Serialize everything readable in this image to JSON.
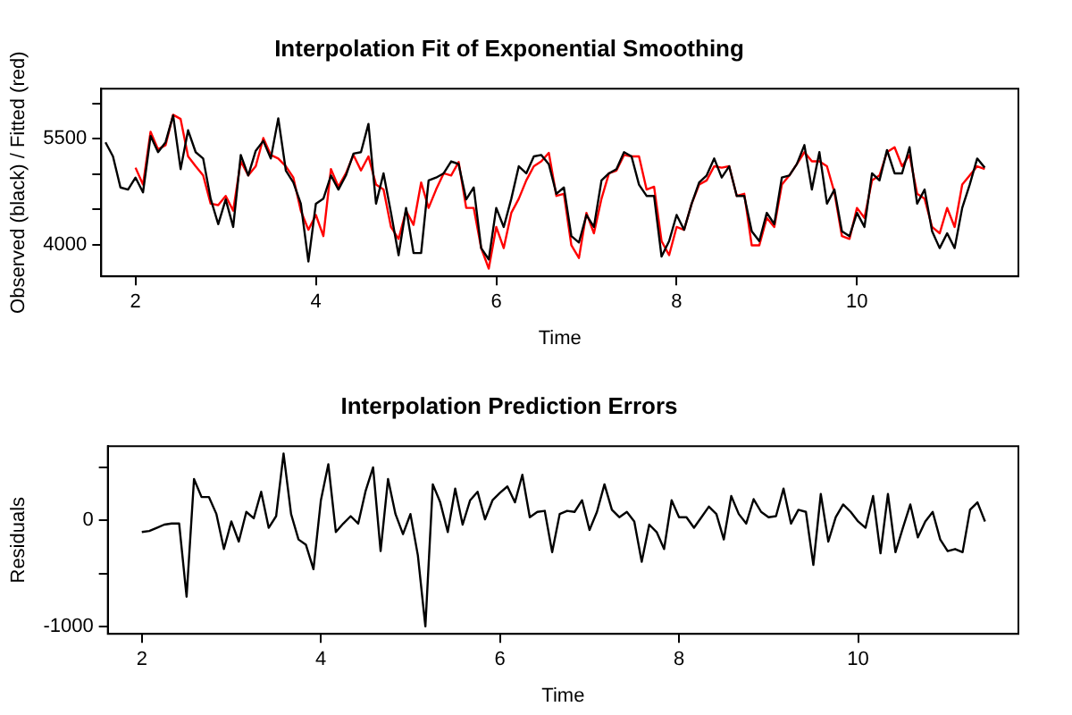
{
  "chart_data": [
    {
      "type": "line",
      "title": "Interpolation Fit of Exponential Smoothing",
      "xlabel": "Time",
      "ylabel": "Observed (black) / Fitted (red)",
      "xlim": [
        1.62,
        11.79
      ],
      "xticks": [
        2,
        4,
        6,
        8,
        10
      ],
      "ylim": [
        3550,
        6210
      ],
      "yticks": [
        4000,
        {
          "value": 4500,
          "label": null
        },
        {
          "value": 5000,
          "label": null
        },
        5500,
        {
          "value": 6000,
          "label": null
        }
      ],
      "grid": false,
      "legend": false,
      "marker": "none",
      "line_style": "solid",
      "series": [
        {
          "color": "#000000",
          "x": [
            1.667,
            1.75,
            1.833,
            1.917,
            2,
            2.083,
            2.167,
            2.25,
            2.333,
            2.417,
            2.5,
            2.583,
            2.667,
            2.75,
            2.833,
            2.917,
            3,
            3.083,
            3.167,
            3.25,
            3.333,
            3.417,
            3.5,
            3.583,
            3.667,
            3.75,
            3.833,
            3.917,
            4,
            4.083,
            4.167,
            4.25,
            4.333,
            4.417,
            4.5,
            4.583,
            4.667,
            4.75,
            4.833,
            4.917,
            5,
            5.083,
            5.167,
            5.25,
            5.333,
            5.417,
            5.5,
            5.583,
            5.667,
            5.75,
            5.833,
            5.917,
            6,
            6.083,
            6.167,
            6.25,
            6.333,
            6.417,
            6.5,
            6.583,
            6.667,
            6.75,
            6.833,
            6.917,
            7,
            7.083,
            7.167,
            7.25,
            7.333,
            7.417,
            7.5,
            7.583,
            7.667,
            7.75,
            7.833,
            7.917,
            8,
            8.083,
            8.167,
            8.25,
            8.333,
            8.417,
            8.5,
            8.583,
            8.667,
            8.75,
            8.833,
            8.917,
            9,
            9.083,
            9.167,
            9.25,
            9.333,
            9.417,
            9.5,
            9.583,
            9.667,
            9.75,
            9.833,
            9.917,
            10,
            10.083,
            10.167,
            10.25,
            10.333,
            10.417,
            10.5,
            10.583,
            10.667,
            10.75,
            10.833,
            10.917,
            11,
            11.083,
            11.167,
            11.25,
            11.333,
            11.417
          ],
          "values": [
            5450,
            5250,
            4810,
            4780,
            4950,
            4740,
            5540,
            5310,
            5450,
            5830,
            5070,
            5620,
            5310,
            5220,
            4650,
            4290,
            4640,
            4250,
            5270,
            4980,
            5330,
            5470,
            5220,
            5790,
            5050,
            4880,
            4580,
            3760,
            4580,
            4650,
            4980,
            4780,
            4980,
            5290,
            5310,
            5710,
            4580,
            5010,
            4450,
            3850,
            4520,
            3880,
            3880,
            4910,
            4950,
            5010,
            5180,
            5140,
            4640,
            4810,
            3950,
            3790,
            4520,
            4250,
            4650,
            5110,
            5010,
            5250,
            5270,
            5140,
            4720,
            4810,
            4120,
            4030,
            4420,
            4250,
            4910,
            5010,
            5070,
            5310,
            5250,
            4850,
            4690,
            4690,
            3830,
            4050,
            4420,
            4210,
            4580,
            4880,
            4980,
            5220,
            4950,
            5110,
            4690,
            4690,
            4190,
            4050,
            4450,
            4290,
            4950,
            4980,
            5140,
            5410,
            4780,
            5310,
            4580,
            4780,
            4190,
            4120,
            4450,
            4250,
            5010,
            4910,
            5340,
            5010,
            5010,
            5380,
            4580,
            4780,
            4190,
            3950,
            4160,
            3950,
            4520,
            4850,
            5220,
            5090
          ]
        },
        {
          "color": "#ff0000",
          "x": [
            2,
            2.083,
            2.167,
            2.25,
            2.333,
            2.417,
            2.5,
            2.583,
            2.667,
            2.75,
            2.833,
            2.917,
            3,
            3.083,
            3.167,
            3.25,
            3.333,
            3.417,
            3.5,
            3.583,
            3.667,
            3.75,
            3.833,
            3.917,
            4,
            4.083,
            4.167,
            4.25,
            4.333,
            4.417,
            4.5,
            4.583,
            4.667,
            4.75,
            4.833,
            4.917,
            5,
            5.083,
            5.167,
            5.25,
            5.333,
            5.417,
            5.5,
            5.583,
            5.667,
            5.75,
            5.833,
            5.917,
            6,
            6.083,
            6.167,
            6.25,
            6.333,
            6.417,
            6.5,
            6.583,
            6.667,
            6.75,
            6.833,
            6.917,
            7,
            7.083,
            7.167,
            7.25,
            7.333,
            7.417,
            7.5,
            7.583,
            7.667,
            7.75,
            7.833,
            7.917,
            8,
            8.083,
            8.167,
            8.25,
            8.333,
            8.417,
            8.5,
            8.583,
            8.667,
            8.75,
            8.833,
            8.917,
            9,
            9.083,
            9.167,
            9.25,
            9.333,
            9.417,
            9.5,
            9.583,
            9.667,
            9.75,
            9.833,
            9.917,
            10,
            10.083,
            10.167,
            10.25,
            10.333,
            10.417,
            10.5,
            10.583,
            10.667,
            10.75,
            10.833,
            10.917,
            11,
            11.083,
            11.167,
            11.25,
            11.333,
            11.417
          ],
          "values": [
            5090,
            4850,
            5600,
            5350,
            5410,
            5840,
            5780,
            5250,
            5110,
            4980,
            4580,
            4560,
            4690,
            4480,
            5180,
            4980,
            5110,
            5510,
            5270,
            5220,
            5110,
            4950,
            4480,
            4210,
            4420,
            4120,
            5070,
            4820,
            5010,
            5270,
            5050,
            5250,
            4850,
            4780,
            4250,
            4080,
            4480,
            4280,
            4880,
            4520,
            4780,
            5010,
            4980,
            5170,
            4520,
            4520,
            3950,
            3660,
            4250,
            3950,
            4450,
            4650,
            4910,
            5110,
            5180,
            5300,
            4690,
            4720,
            3990,
            3810,
            4450,
            4160,
            4650,
            5010,
            5050,
            5270,
            5250,
            5250,
            4780,
            4820,
            4050,
            3850,
            4250,
            4210,
            4580,
            4850,
            4910,
            5110,
            5090,
            5110,
            4690,
            4720,
            3990,
            3990,
            4380,
            4250,
            4850,
            4980,
            5140,
            5310,
            5180,
            5180,
            5110,
            4740,
            4120,
            4080,
            4520,
            4380,
            4910,
            4980,
            5310,
            5380,
            5110,
            5270,
            4720,
            4650,
            4250,
            4160,
            4520,
            4250,
            4850,
            4980,
            5110,
            5070
          ]
        }
      ]
    },
    {
      "type": "line",
      "title": "Interpolation Prediction Errors",
      "xlabel": "Time",
      "ylabel": "Residuals",
      "xlim": [
        1.62,
        11.79
      ],
      "xticks": [
        2,
        4,
        6,
        8,
        10
      ],
      "ylim": [
        -1070,
        700
      ],
      "yticks": [
        -1000,
        {
          "value": -500,
          "label": null
        },
        0,
        {
          "value": 500,
          "label": null
        }
      ],
      "grid": false,
      "legend": false,
      "marker": "none",
      "line_style": "solid",
      "series": [
        {
          "color": "#000000",
          "x": [
            2,
            2.083,
            2.167,
            2.25,
            2.333,
            2.417,
            2.5,
            2.583,
            2.667,
            2.75,
            2.833,
            2.917,
            3,
            3.083,
            3.167,
            3.25,
            3.333,
            3.417,
            3.5,
            3.583,
            3.667,
            3.75,
            3.833,
            3.917,
            4,
            4.083,
            4.167,
            4.25,
            4.333,
            4.417,
            4.5,
            4.583,
            4.667,
            4.75,
            4.833,
            4.917,
            5,
            5.083,
            5.167,
            5.25,
            5.333,
            5.417,
            5.5,
            5.583,
            5.667,
            5.75,
            5.833,
            5.917,
            6,
            6.083,
            6.167,
            6.25,
            6.333,
            6.417,
            6.5,
            6.583,
            6.667,
            6.75,
            6.833,
            6.917,
            7,
            7.083,
            7.167,
            7.25,
            7.333,
            7.417,
            7.5,
            7.583,
            7.667,
            7.75,
            7.833,
            7.917,
            8,
            8.083,
            8.167,
            8.25,
            8.333,
            8.417,
            8.5,
            8.583,
            8.667,
            8.75,
            8.833,
            8.917,
            9,
            9.083,
            9.167,
            9.25,
            9.333,
            9.417,
            9.5,
            9.583,
            9.667,
            9.75,
            9.833,
            9.917,
            10,
            10.083,
            10.167,
            10.25,
            10.333,
            10.417,
            10.5,
            10.583,
            10.667,
            10.75,
            10.833,
            10.917,
            11,
            11.083,
            11.167,
            11.25,
            11.333,
            11.417
          ],
          "values": [
            -110,
            -100,
            -70,
            -40,
            -30,
            -30,
            -720,
            390,
            220,
            220,
            60,
            -270,
            -10,
            -200,
            80,
            20,
            270,
            -70,
            40,
            630,
            60,
            -180,
            -230,
            -460,
            190,
            530,
            -110,
            -30,
            40,
            -30,
            280,
            500,
            -290,
            390,
            60,
            -130,
            60,
            -330,
            -1000,
            340,
            170,
            -110,
            300,
            -40,
            190,
            270,
            10,
            190,
            260,
            320,
            170,
            430,
            30,
            80,
            90,
            -300,
            60,
            90,
            80,
            190,
            -90,
            80,
            340,
            100,
            30,
            80,
            -10,
            -390,
            -40,
            -110,
            -270,
            190,
            30,
            30,
            -70,
            30,
            130,
            60,
            -180,
            230,
            60,
            -30,
            200,
            80,
            30,
            40,
            300,
            -30,
            100,
            80,
            -420,
            250,
            -200,
            30,
            150,
            80,
            -10,
            -70,
            230,
            -310,
            250,
            -300,
            -70,
            150,
            -160,
            -10,
            80,
            -180,
            -290,
            -270,
            -300,
            100,
            170,
            -10
          ]
        }
      ]
    }
  ]
}
